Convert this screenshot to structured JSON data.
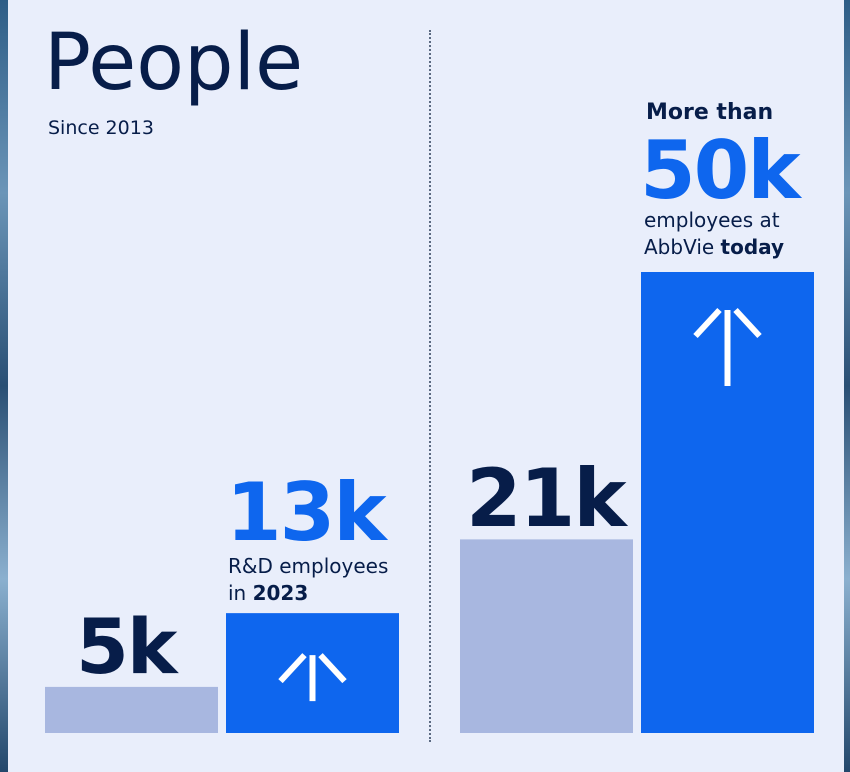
{
  "title": "People",
  "subtitle": "Since 2013",
  "colors": {
    "navy": "#071d49",
    "blue": "#0e66ee",
    "light": "#a8b7e0",
    "background": "#e9eefb"
  },
  "chart_data": [
    {
      "type": "bar",
      "categories": [
        "",
        ""
      ],
      "values": [
        5,
        13
      ],
      "units": "k",
      "value_labels": [
        "5k",
        "13k"
      ],
      "annotations": [
        {
          "bar": 1,
          "text_before": "R&D employees",
          "line2": "in ",
          "bold": "2023"
        }
      ],
      "icons": [
        "up-arrow-icon"
      ]
    },
    {
      "type": "bar",
      "categories": [
        "",
        ""
      ],
      "values": [
        21,
        50
      ],
      "units": "k",
      "value_labels": [
        "21k",
        "50k"
      ],
      "annotations": [
        {
          "bar": 1,
          "prefix": "More than",
          "text_before": "employees at",
          "line2": "AbbVie ",
          "bold": "today"
        }
      ],
      "icons": [
        "up-arrow-icon"
      ]
    }
  ]
}
